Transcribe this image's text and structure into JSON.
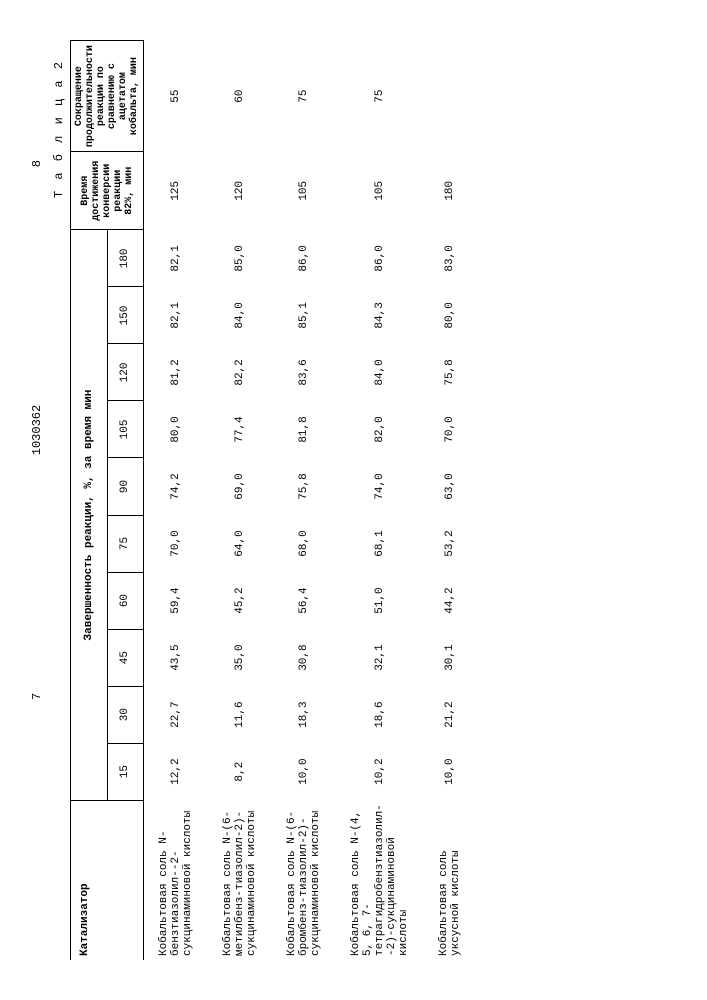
{
  "page_left": "7",
  "doc_number": "1030362",
  "page_right": "8",
  "table_label": "Т а б л и ц а 2",
  "headers": {
    "catalyst": "Катализатор",
    "completion": "Завершенность реакции, %, за время мин",
    "time_reach": "Время достижения конверсии реакции 82%, мин",
    "reduction": "Сокращение продолжительности реакции по сравнению с ацетатом кобальта, мин",
    "times": [
      "15",
      "30",
      "45",
      "60",
      "75",
      "90",
      "105",
      "120",
      "150",
      "180"
    ]
  },
  "rows": [
    {
      "name": "Кобальтовая соль N-бензтиазолил--2-сукцинаминовой кислоты",
      "vals": [
        "12,2",
        "22,7",
        "43,5",
        "59,4",
        "70,0",
        "74,2",
        "80,0",
        "81,2",
        "82,1",
        "82,1"
      ],
      "t82": "125",
      "red": "55"
    },
    {
      "name": "Кобальтовая соль N-(6-метилбенз-тиазолил-2)-сукцинаминовой кислоты",
      "vals": [
        "8,2",
        "11,6",
        "35,0",
        "45,2",
        "64,0",
        "69,0",
        "77,4",
        "82,2",
        "84,0",
        "85,0"
      ],
      "t82": "120",
      "red": "60"
    },
    {
      "name": "Кобальтовая соль N-(6-бромбенз-тиазолил-2)-сукцинаминовой кислоты",
      "vals": [
        "10,0",
        "18,3",
        "30,8",
        "56,4",
        "68,0",
        "75,8",
        "81,8",
        "83,6",
        "85,1",
        "86,0"
      ],
      "t82": "105",
      "red": "75"
    },
    {
      "name": "Кобальтовая соль N-(4, 5, 6, 7-тетрагидробензтиазолил--2)-сукцинаминовой кислоты",
      "vals": [
        "10,2",
        "18,6",
        "32,1",
        "51,0",
        "68,1",
        "74,0",
        "82,0",
        "84,0",
        "84,3",
        "86,0"
      ],
      "t82": "105",
      "red": "75"
    },
    {
      "name": "Кобальтовая соль уксусной кислоты",
      "vals": [
        "10,0",
        "21,2",
        "30,1",
        "44,2",
        "53,2",
        "63,0",
        "70,0",
        "75,8",
        "80,0",
        "83,0"
      ],
      "t82": "180",
      "red": ""
    }
  ]
}
